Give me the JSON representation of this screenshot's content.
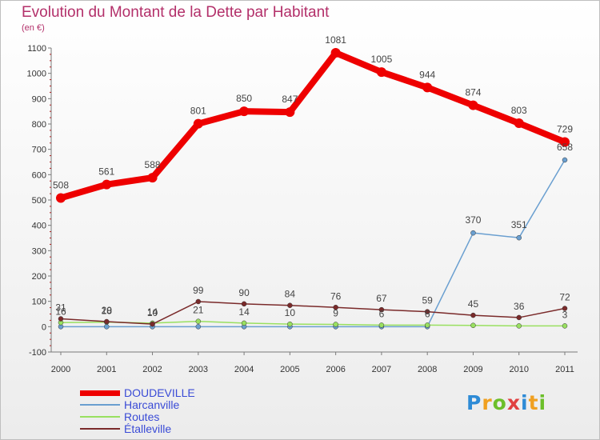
{
  "header": {
    "title": "Evolution du Montant de la Dette par Habitant",
    "unit": "(en €)"
  },
  "logo": {
    "text": "Proxiti",
    "colors": [
      "#2e8bd6",
      "#f0a020",
      "#6cbf2a",
      "#e04040",
      "#2e8bd6",
      "#f0a020",
      "#6cbf2a"
    ]
  },
  "chart_data": {
    "type": "line",
    "title": "Evolution du Montant de la Dette par Habitant",
    "ylabel": "(en €)",
    "xlabel": "",
    "x": [
      "2000",
      "2001",
      "2002",
      "2003",
      "2004",
      "2005",
      "2006",
      "2007",
      "2008",
      "2009",
      "2010",
      "2011"
    ],
    "ylim": [
      -100,
      1100
    ],
    "yticks": [
      "-100",
      "0",
      "100",
      "200",
      "300",
      "400",
      "500",
      "600",
      "700",
      "800",
      "900",
      "1000",
      "1100"
    ],
    "grid": false,
    "legend": "bottom-left",
    "series": [
      {
        "name": "DOUDEVILLE",
        "color": "#ee0000",
        "values": [
          508,
          561,
          588,
          801,
          850,
          847,
          1081,
          1005,
          944,
          874,
          803,
          729
        ],
        "labels": [
          "508",
          "561",
          "588",
          "801",
          "850",
          "847",
          "1081",
          "1005",
          "944",
          "874",
          "803",
          "729"
        ]
      },
      {
        "name": "Harcanville",
        "color": "#6a9fd0",
        "values": [
          0,
          0,
          0,
          0,
          0,
          0,
          0,
          0,
          0,
          370,
          351,
          658
        ],
        "labels": [
          "",
          "",
          "",
          "",
          "",
          "",
          "",
          "",
          "",
          "370",
          "351",
          "658"
        ]
      },
      {
        "name": "Routes",
        "color": "#99e060",
        "values": [
          16,
          18,
          14,
          21,
          14,
          10,
          9,
          6,
          6,
          5,
          3,
          3
        ],
        "labels": [
          "16",
          "18",
          "14",
          "21",
          "14",
          "10",
          "9",
          "6",
          "6",
          "",
          "",
          "3"
        ]
      },
      {
        "name": "Étalleville",
        "color": "#7a2a2a",
        "values": [
          31,
          20,
          10,
          99,
          90,
          84,
          76,
          67,
          59,
          45,
          36,
          72
        ],
        "labels": [
          "31",
          "20",
          "10",
          "99",
          "90",
          "84",
          "76",
          "67",
          "59",
          "45",
          "36",
          "72"
        ]
      }
    ]
  }
}
